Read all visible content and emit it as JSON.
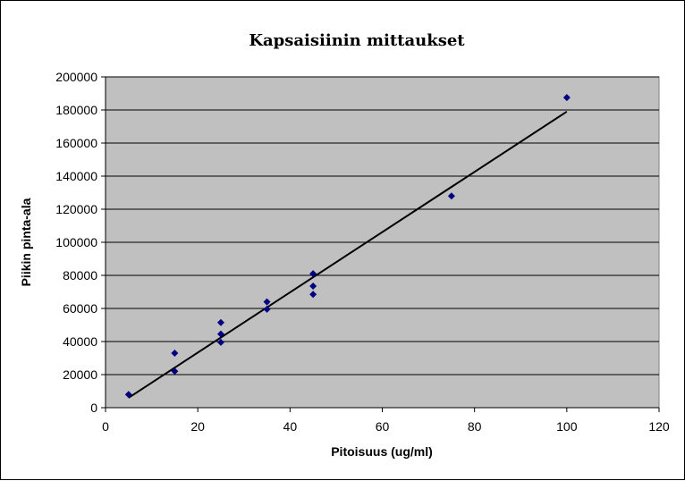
{
  "chart_data": {
    "type": "scatter",
    "title": "Kapsaisiinin mittaukset",
    "xlabel": "Pitoisuus (ug/ml)",
    "ylabel": "Piikin pinta-ala",
    "xlim": [
      0,
      120
    ],
    "ylim": [
      0,
      200000
    ],
    "x_ticks": [
      "0",
      "20",
      "40",
      "60",
      "80",
      "100",
      "120"
    ],
    "y_ticks": [
      "0",
      "20000",
      "40000",
      "60000",
      "80000",
      "100000",
      "120000",
      "140000",
      "160000",
      "180000",
      "200000"
    ],
    "grid": "horizontal",
    "legend": "none",
    "points": [
      {
        "x": 5,
        "y": 8000
      },
      {
        "x": 15,
        "y": 33000
      },
      {
        "x": 15,
        "y": 22000
      },
      {
        "x": 25,
        "y": 51500
      },
      {
        "x": 25,
        "y": 44500
      },
      {
        "x": 25,
        "y": 39500
      },
      {
        "x": 35,
        "y": 64000
      },
      {
        "x": 35,
        "y": 59500
      },
      {
        "x": 45,
        "y": 81000
      },
      {
        "x": 45,
        "y": 73500
      },
      {
        "x": 45,
        "y": 68500
      },
      {
        "x": 75,
        "y": 128000
      },
      {
        "x": 100,
        "y": 187500
      }
    ],
    "trendline": {
      "type": "linear",
      "x": [
        5,
        100
      ],
      "y": [
        6000,
        179000
      ]
    },
    "colors": {
      "plot_background": "#c0c0c0",
      "marker": "#000080",
      "trendline": "#000000",
      "gridline": "#000000"
    }
  }
}
